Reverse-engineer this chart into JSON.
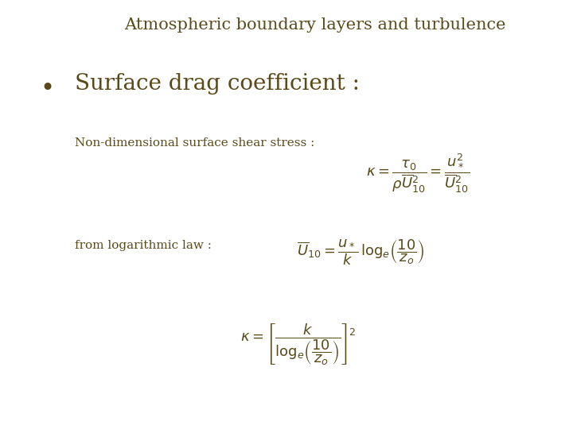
{
  "title": "Atmospheric boundary layers and turbulence",
  "title_color": "#5a4a1a",
  "title_fontsize": 15,
  "bullet_text": "Surface drag coefficient :",
  "bullet_color": "#5a4a1a",
  "bullet_fontsize": 20,
  "label1": "Non-dimensional surface shear stress :",
  "label1_color": "#5a4a1a",
  "label1_fontsize": 11,
  "eq1": "$\\kappa = \\dfrac{\\tau_0}{\\rho \\overline{U}_{10}^{2}} = \\dfrac{u_*^2}{\\overline{U}_{10}^{2}}$",
  "label2": "from logarithmic law :",
  "label2_color": "#5a4a1a",
  "label2_fontsize": 11,
  "eq2": "$\\overline{U}_{10} = \\dfrac{u_*}{k}\\,\\log_e\\!\\left(\\dfrac{10}{z_o}\\right)$",
  "eq3": "$\\kappa = \\left[\\dfrac{k}{\\log_e\\!\\left(\\dfrac{10}{z_o}\\right)}\\right]^{\\!2}$",
  "math_color": "#5a4a1a",
  "bg_color": "#ffffff",
  "bullet_symbol": "•"
}
